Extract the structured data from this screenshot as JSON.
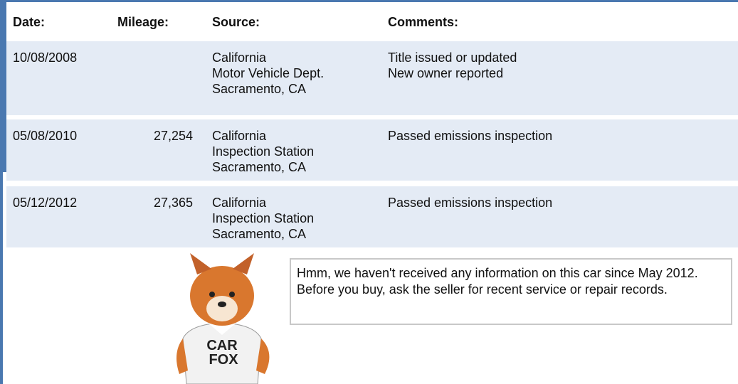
{
  "table": {
    "header": [
      "Date:",
      "Mileage:",
      "Source:",
      "Comments:"
    ],
    "rows": [
      {
        "date": "10/08/2008",
        "mileage": null,
        "source": [
          "California",
          "Motor Vehicle Dept.",
          "Sacramento, CA"
        ],
        "comments": [
          "Title issued or updated",
          "New owner reported"
        ]
      },
      {
        "date": "05/08/2010",
        "mileage": "27,254",
        "source": [
          "California",
          "Inspection Station",
          "Sacramento, CA"
        ],
        "comments": [
          "Passed emissions inspection"
        ]
      },
      {
        "date": "05/12/2012",
        "mileage": "27,365",
        "source": [
          "California",
          "Inspection Station",
          "Sacramento, CA"
        ],
        "comments": [
          "Passed emissions inspection"
        ]
      }
    ]
  },
  "mascot": {
    "shirt_text": [
      "CAR",
      "FOX"
    ]
  },
  "message": "Hmm, we haven't received any information on this car since May 2012. Before you buy, ask the seller for recent service or repair records."
}
